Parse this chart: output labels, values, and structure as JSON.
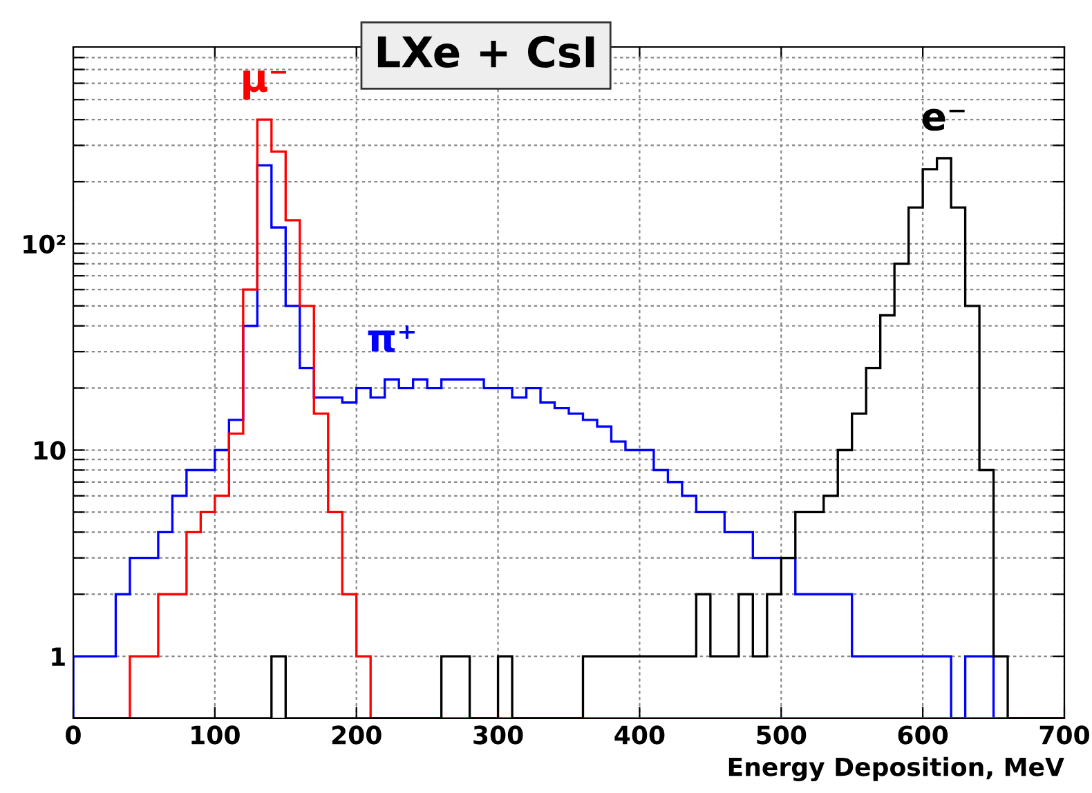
{
  "chart_data": {
    "type": "histogram",
    "title": "LXe + CsI",
    "xlabel": "Energy Deposition, MeV",
    "bins": [
      0,
      10,
      20,
      30,
      40,
      50,
      60,
      70,
      80,
      90,
      100,
      110,
      120,
      130,
      140,
      150,
      160,
      170,
      180,
      190,
      200,
      210,
      220,
      230,
      240,
      250,
      260,
      270,
      280,
      290,
      300,
      310,
      320,
      330,
      340,
      350,
      360,
      370,
      380,
      390,
      400,
      410,
      420,
      430,
      440,
      450,
      460,
      470,
      480,
      490,
      500,
      510,
      520,
      530,
      540,
      550,
      560,
      570,
      580,
      590,
      600,
      610,
      620,
      630,
      640,
      650,
      660,
      670,
      680,
      690,
      700
    ],
    "series": [
      {
        "name": "π⁺",
        "color": "#0000ff",
        "values": [
          1,
          1,
          1,
          2,
          3,
          3,
          4,
          6,
          8,
          8,
          10,
          14,
          40,
          240,
          120,
          50,
          25,
          18,
          18,
          17,
          20,
          18,
          22,
          20,
          22,
          20,
          22,
          22,
          22,
          20,
          20,
          18,
          20,
          17,
          16,
          15,
          14,
          13,
          11,
          10,
          10,
          8,
          7,
          6,
          5,
          5,
          4,
          4,
          3,
          3,
          3,
          2,
          2,
          2,
          2,
          1,
          1,
          1,
          1,
          1,
          1,
          1,
          null,
          1,
          1,
          null,
          null,
          null,
          null,
          null
        ]
      },
      {
        "name": "μ⁻",
        "color": "#ff0000",
        "values": [
          null,
          null,
          null,
          null,
          1,
          1,
          2,
          2,
          4,
          5,
          6,
          12,
          60,
          400,
          280,
          130,
          50,
          15,
          5,
          2,
          1,
          null,
          null,
          null,
          null,
          null,
          null,
          null,
          null,
          null,
          null,
          null,
          null,
          null,
          null,
          null,
          null,
          null,
          null,
          null,
          null,
          null,
          null,
          null,
          null,
          null,
          null,
          null,
          null,
          null,
          null,
          null,
          null,
          null,
          null,
          null,
          null,
          null,
          null,
          null,
          null,
          null,
          null,
          null,
          null,
          null,
          null,
          null,
          null,
          null
        ]
      },
      {
        "name": "e⁻",
        "color": "#000000",
        "values": [
          null,
          null,
          null,
          null,
          null,
          null,
          null,
          null,
          null,
          null,
          null,
          null,
          null,
          null,
          1,
          null,
          null,
          null,
          null,
          null,
          null,
          null,
          null,
          null,
          null,
          null,
          1,
          1,
          null,
          null,
          1,
          null,
          null,
          null,
          null,
          null,
          1,
          1,
          1,
          1,
          1,
          1,
          1,
          1,
          2,
          1,
          1,
          2,
          1,
          2,
          3,
          5,
          5,
          6,
          10,
          15,
          25,
          45,
          80,
          150,
          230,
          260,
          150,
          50,
          8,
          1,
          null,
          null,
          null,
          null
        ]
      }
    ],
    "log": "y",
    "xlim": [
      0,
      700
    ],
    "ylim": [
      0.5,
      900
    ],
    "xticks": [
      0,
      100,
      200,
      300,
      400,
      500,
      600,
      700
    ],
    "yticks": [
      1,
      {
        "value": 2,
        "label": null
      },
      {
        "value": 3,
        "label": null
      },
      {
        "value": 4,
        "label": null
      },
      {
        "value": 5,
        "label": null
      },
      {
        "value": 6,
        "label": null
      },
      {
        "value": 7,
        "label": null
      },
      {
        "value": 8,
        "label": null
      },
      {
        "value": 9,
        "label": null
      },
      10,
      {
        "value": 20,
        "label": null
      },
      {
        "value": 30,
        "label": null
      },
      {
        "value": 40,
        "label": null
      },
      {
        "value": 50,
        "label": null
      },
      {
        "value": 60,
        "label": null
      },
      {
        "value": 70,
        "label": null
      },
      {
        "value": 80,
        "label": null
      },
      {
        "value": 90,
        "label": null
      },
      {
        "value": 100,
        "label": "10²"
      },
      {
        "value": 200,
        "label": null
      },
      {
        "value": 300,
        "label": null
      },
      {
        "value": 400,
        "label": null
      },
      {
        "value": 500,
        "label": null
      },
      {
        "value": 600,
        "label": null
      },
      {
        "value": 700,
        "label": null
      },
      {
        "value": 800,
        "label": null
      }
    ],
    "grid": true,
    "line_style": "solid"
  }
}
